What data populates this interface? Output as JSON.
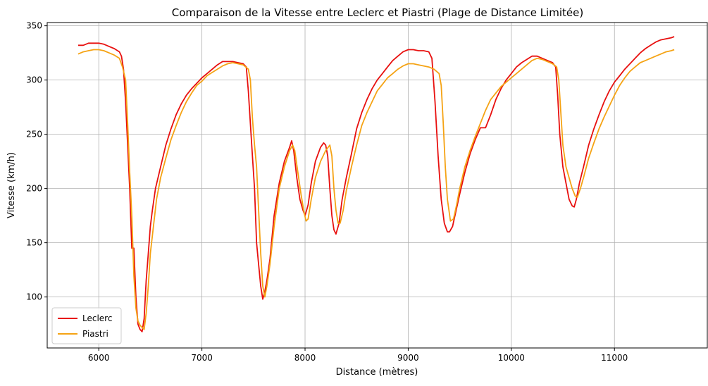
{
  "chart_data": {
    "type": "line",
    "title": "Comparaison de la Vitesse entre Leclerc et Piastri (Plage de Distance Limitée)",
    "xlabel": "Distance (mètres)",
    "ylabel": "Vitesse (km/h)",
    "xlim": [
      5500,
      11900
    ],
    "ylim": [
      53,
      353
    ],
    "xticks": [
      6000,
      7000,
      8000,
      9000,
      10000,
      11000
    ],
    "yticks": [
      100,
      150,
      200,
      250,
      300,
      350
    ],
    "grid": true,
    "legend_position": "lower-left",
    "series": [
      {
        "name": "Leclerc",
        "color": "#e8100f",
        "points": [
          [
            5800,
            332
          ],
          [
            5850,
            332
          ],
          [
            5900,
            334
          ],
          [
            6000,
            334
          ],
          [
            6050,
            333
          ],
          [
            6100,
            331
          ],
          [
            6150,
            329
          ],
          [
            6200,
            326
          ],
          [
            6220,
            322
          ],
          [
            6240,
            310
          ],
          [
            6260,
            280
          ],
          [
            6280,
            240
          ],
          [
            6300,
            200
          ],
          [
            6320,
            145
          ],
          [
            6340,
            145
          ],
          [
            6360,
            100
          ],
          [
            6380,
            75
          ],
          [
            6400,
            70
          ],
          [
            6420,
            68
          ],
          [
            6440,
            80
          ],
          [
            6460,
            115
          ],
          [
            6480,
            140
          ],
          [
            6500,
            165
          ],
          [
            6520,
            180
          ],
          [
            6550,
            200
          ],
          [
            6600,
            220
          ],
          [
            6650,
            240
          ],
          [
            6700,
            255
          ],
          [
            6750,
            268
          ],
          [
            6800,
            278
          ],
          [
            6850,
            286
          ],
          [
            6900,
            292
          ],
          [
            6950,
            297
          ],
          [
            7000,
            302
          ],
          [
            7050,
            306
          ],
          [
            7100,
            310
          ],
          [
            7150,
            314
          ],
          [
            7200,
            317
          ],
          [
            7250,
            317
          ],
          [
            7300,
            317
          ],
          [
            7350,
            316
          ],
          [
            7400,
            315
          ],
          [
            7430,
            312
          ],
          [
            7450,
            290
          ],
          [
            7470,
            260
          ],
          [
            7490,
            230
          ],
          [
            7510,
            200
          ],
          [
            7530,
            150
          ],
          [
            7550,
            130
          ],
          [
            7570,
            110
          ],
          [
            7590,
            98
          ],
          [
            7610,
            105
          ],
          [
            7630,
            115
          ],
          [
            7660,
            135
          ],
          [
            7700,
            175
          ],
          [
            7750,
            205
          ],
          [
            7800,
            225
          ],
          [
            7850,
            238
          ],
          [
            7870,
            244
          ],
          [
            7890,
            235
          ],
          [
            7920,
            210
          ],
          [
            7950,
            190
          ],
          [
            7980,
            180
          ],
          [
            8000,
            175
          ],
          [
            8030,
            185
          ],
          [
            8060,
            205
          ],
          [
            8100,
            225
          ],
          [
            8150,
            238
          ],
          [
            8180,
            242
          ],
          [
            8200,
            240
          ],
          [
            8220,
            230
          ],
          [
            8240,
            200
          ],
          [
            8260,
            175
          ],
          [
            8280,
            162
          ],
          [
            8300,
            158
          ],
          [
            8330,
            168
          ],
          [
            8360,
            190
          ],
          [
            8400,
            210
          ],
          [
            8450,
            232
          ],
          [
            8500,
            255
          ],
          [
            8550,
            270
          ],
          [
            8600,
            282
          ],
          [
            8650,
            292
          ],
          [
            8700,
            300
          ],
          [
            8750,
            306
          ],
          [
            8800,
            312
          ],
          [
            8850,
            318
          ],
          [
            8900,
            322
          ],
          [
            8950,
            326
          ],
          [
            9000,
            328
          ],
          [
            9050,
            328
          ],
          [
            9100,
            327
          ],
          [
            9150,
            327
          ],
          [
            9200,
            326
          ],
          [
            9230,
            320
          ],
          [
            9260,
            280
          ],
          [
            9290,
            230
          ],
          [
            9320,
            190
          ],
          [
            9350,
            168
          ],
          [
            9380,
            160
          ],
          [
            9400,
            160
          ],
          [
            9430,
            165
          ],
          [
            9460,
            178
          ],
          [
            9500,
            195
          ],
          [
            9550,
            215
          ],
          [
            9600,
            232
          ],
          [
            9650,
            245
          ],
          [
            9700,
            256
          ],
          [
            9750,
            256
          ],
          [
            9800,
            268
          ],
          [
            9850,
            282
          ],
          [
            9900,
            292
          ],
          [
            9950,
            300
          ],
          [
            10000,
            306
          ],
          [
            10050,
            312
          ],
          [
            10100,
            316
          ],
          [
            10150,
            319
          ],
          [
            10200,
            322
          ],
          [
            10250,
            322
          ],
          [
            10300,
            320
          ],
          [
            10350,
            318
          ],
          [
            10400,
            316
          ],
          [
            10430,
            312
          ],
          [
            10450,
            285
          ],
          [
            10470,
            250
          ],
          [
            10500,
            220
          ],
          [
            10530,
            205
          ],
          [
            10560,
            190
          ],
          [
            10590,
            184
          ],
          [
            10610,
            183
          ],
          [
            10630,
            190
          ],
          [
            10660,
            205
          ],
          [
            10700,
            220
          ],
          [
            10750,
            240
          ],
          [
            10800,
            255
          ],
          [
            10850,
            268
          ],
          [
            10900,
            280
          ],
          [
            10950,
            290
          ],
          [
            11000,
            298
          ],
          [
            11050,
            304
          ],
          [
            11100,
            310
          ],
          [
            11150,
            315
          ],
          [
            11200,
            320
          ],
          [
            11250,
            325
          ],
          [
            11300,
            329
          ],
          [
            11350,
            332
          ],
          [
            11400,
            335
          ],
          [
            11450,
            337
          ],
          [
            11500,
            338
          ],
          [
            11550,
            339
          ],
          [
            11580,
            340
          ]
        ]
      },
      {
        "name": "Piastri",
        "color": "#f5a314",
        "points": [
          [
            5800,
            324
          ],
          [
            5850,
            326
          ],
          [
            5900,
            327
          ],
          [
            5950,
            328
          ],
          [
            6000,
            328
          ],
          [
            6050,
            327
          ],
          [
            6100,
            325
          ],
          [
            6150,
            323
          ],
          [
            6200,
            320
          ],
          [
            6230,
            312
          ],
          [
            6260,
            300
          ],
          [
            6280,
            260
          ],
          [
            6300,
            215
          ],
          [
            6320,
            175
          ],
          [
            6340,
            120
          ],
          [
            6360,
            90
          ],
          [
            6380,
            78
          ],
          [
            6400,
            74
          ],
          [
            6420,
            72
          ],
          [
            6440,
            70
          ],
          [
            6460,
            85
          ],
          [
            6480,
            110
          ],
          [
            6500,
            140
          ],
          [
            6530,
            165
          ],
          [
            6560,
            190
          ],
          [
            6600,
            210
          ],
          [
            6650,
            228
          ],
          [
            6700,
            245
          ],
          [
            6750,
            258
          ],
          [
            6800,
            270
          ],
          [
            6850,
            280
          ],
          [
            6900,
            288
          ],
          [
            6950,
            295
          ],
          [
            7000,
            299
          ],
          [
            7050,
            304
          ],
          [
            7100,
            307
          ],
          [
            7150,
            310
          ],
          [
            7200,
            313
          ],
          [
            7250,
            315
          ],
          [
            7300,
            316
          ],
          [
            7350,
            315
          ],
          [
            7400,
            314
          ],
          [
            7450,
            310
          ],
          [
            7470,
            300
          ],
          [
            7490,
            265
          ],
          [
            7510,
            240
          ],
          [
            7530,
            220
          ],
          [
            7550,
            180
          ],
          [
            7570,
            140
          ],
          [
            7590,
            110
          ],
          [
            7610,
            100
          ],
          [
            7630,
            110
          ],
          [
            7660,
            130
          ],
          [
            7700,
            165
          ],
          [
            7750,
            200
          ],
          [
            7800,
            220
          ],
          [
            7850,
            235
          ],
          [
            7880,
            240
          ],
          [
            7900,
            235
          ],
          [
            7930,
            215
          ],
          [
            7960,
            195
          ],
          [
            7990,
            178
          ],
          [
            8010,
            170
          ],
          [
            8030,
            172
          ],
          [
            8060,
            190
          ],
          [
            8100,
            210
          ],
          [
            8150,
            225
          ],
          [
            8200,
            235
          ],
          [
            8240,
            240
          ],
          [
            8260,
            230
          ],
          [
            8280,
            200
          ],
          [
            8300,
            180
          ],
          [
            8320,
            168
          ],
          [
            8340,
            168
          ],
          [
            8370,
            180
          ],
          [
            8400,
            198
          ],
          [
            8450,
            220
          ],
          [
            8500,
            240
          ],
          [
            8550,
            258
          ],
          [
            8600,
            270
          ],
          [
            8650,
            280
          ],
          [
            8700,
            290
          ],
          [
            8750,
            296
          ],
          [
            8800,
            302
          ],
          [
            8850,
            306
          ],
          [
            8900,
            310
          ],
          [
            8950,
            313
          ],
          [
            9000,
            315
          ],
          [
            9050,
            315
          ],
          [
            9100,
            314
          ],
          [
            9150,
            313
          ],
          [
            9200,
            312
          ],
          [
            9250,
            310
          ],
          [
            9300,
            306
          ],
          [
            9320,
            295
          ],
          [
            9340,
            260
          ],
          [
            9360,
            220
          ],
          [
            9380,
            190
          ],
          [
            9410,
            170
          ],
          [
            9440,
            172
          ],
          [
            9470,
            185
          ],
          [
            9500,
            200
          ],
          [
            9550,
            220
          ],
          [
            9600,
            235
          ],
          [
            9650,
            248
          ],
          [
            9700,
            260
          ],
          [
            9750,
            272
          ],
          [
            9800,
            282
          ],
          [
            9850,
            288
          ],
          [
            9900,
            294
          ],
          [
            9950,
            298
          ],
          [
            10000,
            302
          ],
          [
            10050,
            306
          ],
          [
            10100,
            310
          ],
          [
            10150,
            314
          ],
          [
            10200,
            318
          ],
          [
            10250,
            320
          ],
          [
            10300,
            319
          ],
          [
            10350,
            317
          ],
          [
            10400,
            315
          ],
          [
            10440,
            312
          ],
          [
            10460,
            300
          ],
          [
            10480,
            270
          ],
          [
            10500,
            240
          ],
          [
            10530,
            220
          ],
          [
            10560,
            210
          ],
          [
            10590,
            200
          ],
          [
            10620,
            193
          ],
          [
            10640,
            192
          ],
          [
            10670,
            200
          ],
          [
            10700,
            210
          ],
          [
            10750,
            228
          ],
          [
            10800,
            242
          ],
          [
            10850,
            255
          ],
          [
            10900,
            266
          ],
          [
            10950,
            276
          ],
          [
            11000,
            286
          ],
          [
            11050,
            295
          ],
          [
            11100,
            302
          ],
          [
            11150,
            308
          ],
          [
            11200,
            312
          ],
          [
            11250,
            316
          ],
          [
            11300,
            318
          ],
          [
            11350,
            320
          ],
          [
            11400,
            322
          ],
          [
            11450,
            324
          ],
          [
            11500,
            326
          ],
          [
            11550,
            327
          ],
          [
            11580,
            328
          ]
        ]
      }
    ]
  }
}
